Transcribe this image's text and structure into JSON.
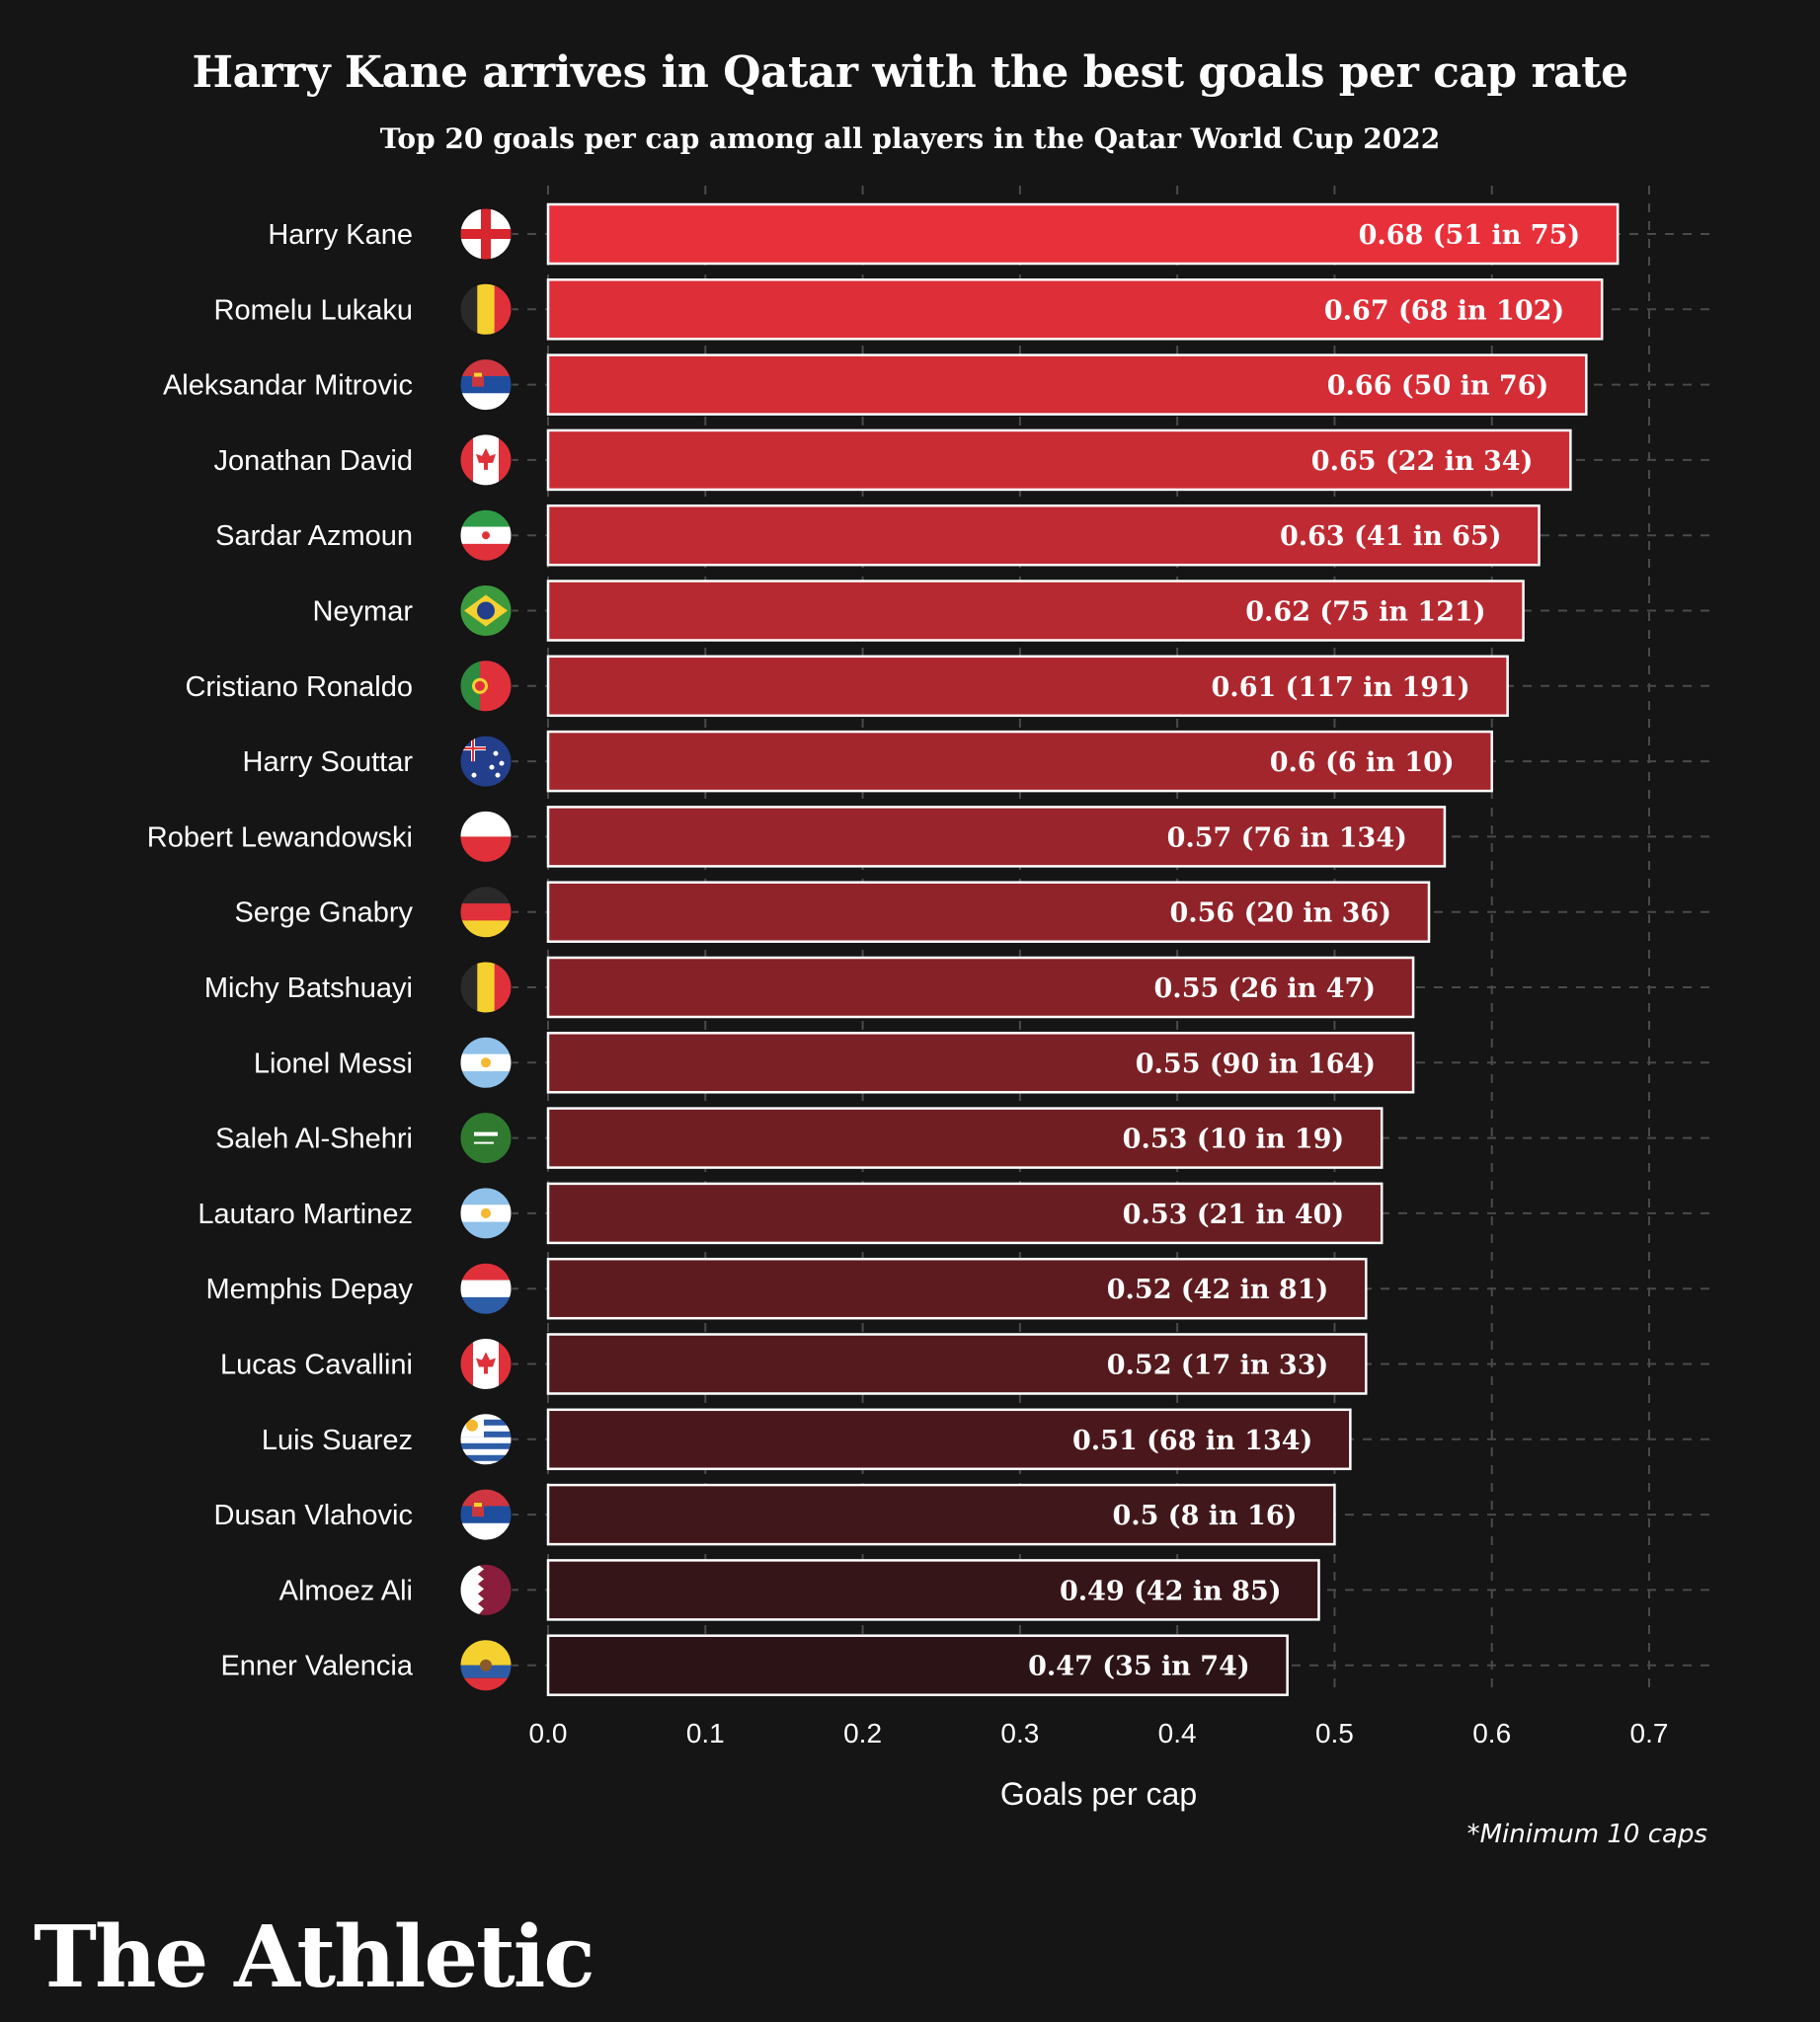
{
  "header": {
    "title": "Harry Kane arrives in Qatar with the best goals per cap rate",
    "subtitle": "Top 20 goals per cap among all players in the Qatar World Cup 2022"
  },
  "footer": {
    "note": "*Minimum 10 caps",
    "brand": "The Athletic"
  },
  "colors": {
    "background": "#151515",
    "bar_top": "#e8303a",
    "bar_bottom": "#2c1416",
    "bar_border": "#ffffff",
    "grid": "#4a4a4a"
  },
  "chart_data": {
    "type": "bar",
    "orientation": "horizontal",
    "xlabel": "Goals per cap",
    "ylabel": "",
    "xlim": [
      0,
      0.7
    ],
    "xticks": [
      "0.0",
      "0.1",
      "0.2",
      "0.3",
      "0.4",
      "0.5",
      "0.6",
      "0.7"
    ],
    "grid": true,
    "categories": [
      "Harry Kane",
      "Romelu Lukaku",
      "Aleksandar Mitrovic",
      "Jonathan David",
      "Sardar Azmoun",
      "Neymar",
      "Cristiano Ronaldo",
      "Harry Souttar",
      "Robert Lewandowski",
      "Serge Gnabry",
      "Michy Batshuayi",
      "Lionel Messi",
      "Saleh Al-Shehri",
      "Lautaro Martinez",
      "Memphis Depay",
      "Lucas Cavallini",
      "Luis Suarez",
      "Dusan Vlahovic",
      "Almoez Ali",
      "Enner Valencia"
    ],
    "values": [
      0.68,
      0.67,
      0.66,
      0.65,
      0.63,
      0.62,
      0.61,
      0.6,
      0.57,
      0.56,
      0.55,
      0.55,
      0.53,
      0.53,
      0.52,
      0.52,
      0.51,
      0.5,
      0.49,
      0.47
    ],
    "data_labels": [
      "0.68 (51 in 75)",
      "0.67 (68 in 102)",
      "0.66 (50 in 76)",
      "0.65 (22 in 34)",
      "0.63 (41 in 65)",
      "0.62 (75 in 121)",
      "0.61 (117 in 191)",
      "0.6 (6 in 10)",
      "0.57 (76 in 134)",
      "0.56 (20 in 36)",
      "0.55 (26 in 47)",
      "0.55 (90 in 164)",
      "0.53 (10 in 19)",
      "0.53 (21 in 40)",
      "0.52 (42 in 81)",
      "0.52 (17 in 33)",
      "0.51 (68 in 134)",
      "0.5 (8 in 16)",
      "0.49 (42 in 85)",
      "0.47 (35 in 74)"
    ],
    "flags": [
      "england-flag-icon",
      "belgium-flag-icon",
      "serbia-flag-icon",
      "canada-flag-icon",
      "iran-flag-icon",
      "brazil-flag-icon",
      "portugal-flag-icon",
      "australia-flag-icon",
      "poland-flag-icon",
      "germany-flag-icon",
      "belgium-flag-icon",
      "argentina-flag-icon",
      "saudi-arabia-flag-icon",
      "argentina-flag-icon",
      "netherlands-flag-icon",
      "canada-flag-icon",
      "uruguay-flag-icon",
      "serbia-flag-icon",
      "qatar-flag-icon",
      "ecuador-flag-icon"
    ]
  }
}
